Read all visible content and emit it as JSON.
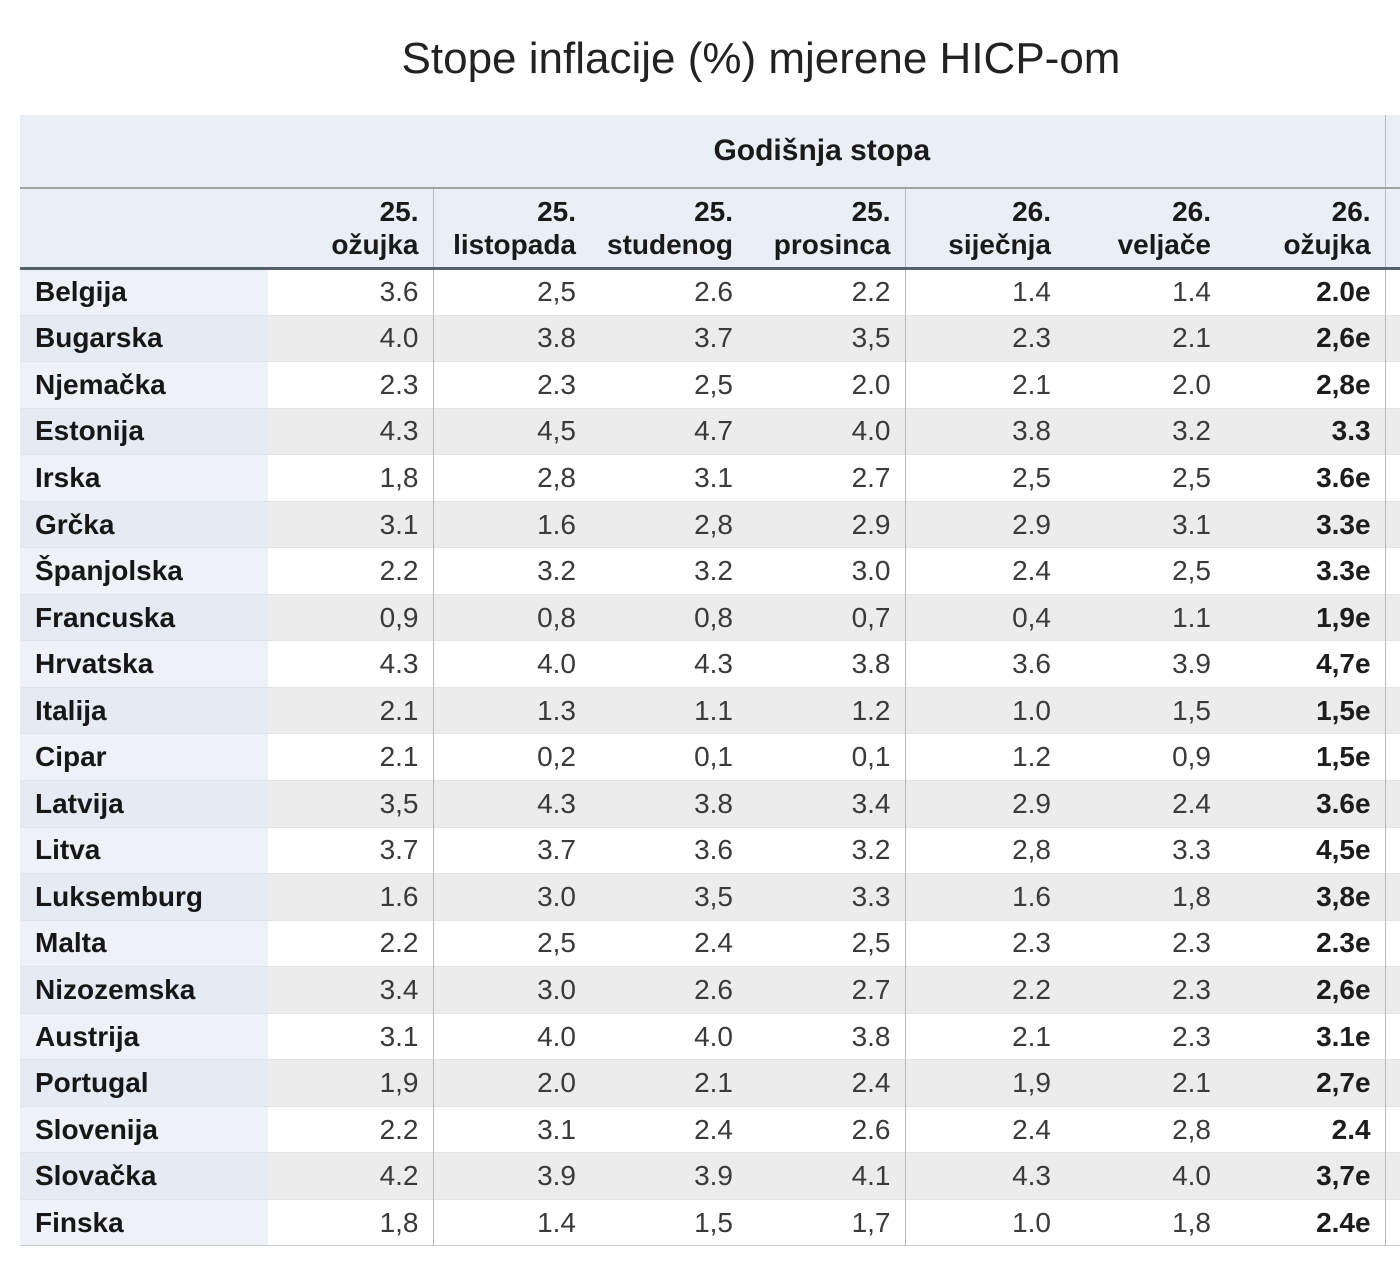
{
  "title": "Stope inflacije (%) mjerene HICP-om",
  "table": {
    "group_header": "Godišnja stopa",
    "columns": [
      "25.\nožujka",
      "25.\nlistopada",
      "25.\nstudenog",
      "25.\nprosinca",
      "26.\nsiječnja",
      "26.\nveljače",
      "26.\nožujka"
    ],
    "rows": [
      {
        "country": "Belgija",
        "values": [
          "3.6",
          "2,5",
          "2.6",
          "2.2",
          "1.4",
          "1.4",
          "2.0e"
        ]
      },
      {
        "country": "Bugarska",
        "values": [
          "4.0",
          "3.8",
          "3.7",
          "3,5",
          "2.3",
          "2.1",
          "2,6e"
        ]
      },
      {
        "country": "Njemačka",
        "values": [
          "2.3",
          "2.3",
          "2,5",
          "2.0",
          "2.1",
          "2.0",
          "2,8e"
        ]
      },
      {
        "country": "Estonija",
        "values": [
          "4.3",
          "4,5",
          "4.7",
          "4.0",
          "3.8",
          "3.2",
          "3.3"
        ]
      },
      {
        "country": "Irska",
        "values": [
          "1,8",
          "2,8",
          "3.1",
          "2.7",
          "2,5",
          "2,5",
          "3.6e"
        ]
      },
      {
        "country": "Grčka",
        "values": [
          "3.1",
          "1.6",
          "2,8",
          "2.9",
          "2.9",
          "3.1",
          "3.3e"
        ]
      },
      {
        "country": "Španjolska",
        "values": [
          "2.2",
          "3.2",
          "3.2",
          "3.0",
          "2.4",
          "2,5",
          "3.3e"
        ]
      },
      {
        "country": "Francuska",
        "values": [
          "0,9",
          "0,8",
          "0,8",
          "0,7",
          "0,4",
          "1.1",
          "1,9e"
        ]
      },
      {
        "country": "Hrvatska",
        "values": [
          "4.3",
          "4.0",
          "4.3",
          "3.8",
          "3.6",
          "3.9",
          "4,7e"
        ]
      },
      {
        "country": "Italija",
        "values": [
          "2.1",
          "1.3",
          "1.1",
          "1.2",
          "1.0",
          "1,5",
          "1,5e"
        ]
      },
      {
        "country": "Cipar",
        "values": [
          "2.1",
          "0,2",
          "0,1",
          "0,1",
          "1.2",
          "0,9",
          "1,5e"
        ]
      },
      {
        "country": "Latvija",
        "values": [
          "3,5",
          "4.3",
          "3.8",
          "3.4",
          "2.9",
          "2.4",
          "3.6e"
        ]
      },
      {
        "country": "Litva",
        "values": [
          "3.7",
          "3.7",
          "3.6",
          "3.2",
          "2,8",
          "3.3",
          "4,5e"
        ]
      },
      {
        "country": "Luksemburg",
        "values": [
          "1.6",
          "3.0",
          "3,5",
          "3.3",
          "1.6",
          "1,8",
          "3,8e"
        ]
      },
      {
        "country": "Malta",
        "values": [
          "2.2",
          "2,5",
          "2.4",
          "2,5",
          "2.3",
          "2.3",
          "2.3e"
        ]
      },
      {
        "country": "Nizozemska",
        "values": [
          "3.4",
          "3.0",
          "2.6",
          "2.7",
          "2.2",
          "2.3",
          "2,6e"
        ]
      },
      {
        "country": "Austrija",
        "values": [
          "3.1",
          "4.0",
          "4.0",
          "3.8",
          "2.1",
          "2.3",
          "3.1e"
        ]
      },
      {
        "country": "Portugal",
        "values": [
          "1,9",
          "2.0",
          "2.1",
          "2.4",
          "1,9",
          "2.1",
          "2,7e"
        ]
      },
      {
        "country": "Slovenija",
        "values": [
          "2.2",
          "3.1",
          "2.4",
          "2.6",
          "2.4",
          "2,8",
          "2.4"
        ]
      },
      {
        "country": "Slovačka",
        "values": [
          "4.2",
          "3.9",
          "3.9",
          "4.1",
          "4.3",
          "4.0",
          "3,7e"
        ]
      },
      {
        "country": "Finska",
        "values": [
          "1,8",
          "1.4",
          "1,5",
          "1,7",
          "1.0",
          "1,8",
          "2.4e"
        ]
      }
    ]
  },
  "theme": {
    "panel_bg": "#eaeef5",
    "stripe_bg": "#ececec",
    "row_bg": "#ffffff",
    "country_odd_bg": "#eef1f8",
    "country_even_bg": "#e6ebf3",
    "header_underline": "#566069",
    "band_underline": "#a3a3a3",
    "divider": "#b5b8bc",
    "row_line": "#e0e4e9",
    "text": "#3a3a3a",
    "text_strong": "#171717"
  }
}
